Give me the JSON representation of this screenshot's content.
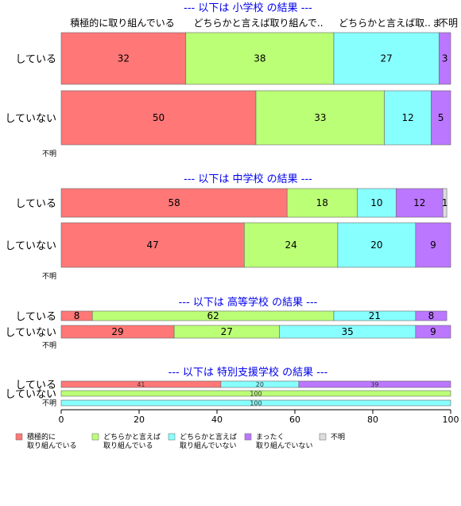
{
  "colors": {
    "積極的に取り組んでいる": "#ff7777",
    "どちらかと言えば取り組んでいる": "#bbff77",
    "どちらかと言えば取り組んでいない": "#88ffff",
    "まったく取り組んでいない": "#bb77ff",
    "不明": "#dddddd"
  },
  "top_headers": [
    "積極的に取り組んでいる",
    "どちらかと言えば取り組んで..",
    "どちらかと言えば取..",
    "ま",
    "不明"
  ],
  "chart_data": {
    "type": "bar",
    "orientation": "horizontal",
    "stacked": true,
    "xlim": [
      0,
      100
    ],
    "xticks": [
      0,
      20,
      40,
      60,
      80,
      100
    ],
    "legend": {
      "placement": "bottom-left",
      "entries": [
        {
          "key": "積極的に取り組んでいる",
          "lines": [
            "積極的に",
            "取り組んでいる"
          ]
        },
        {
          "key": "どちらかと言えば取り組んでいる",
          "lines": [
            "どちらかと言えば",
            "取り組んでいる"
          ]
        },
        {
          "key": "どちらかと言えば取り組んでいない",
          "lines": [
            "どちらかと言えば",
            "取り組んでいない"
          ]
        },
        {
          "key": "まったく取り組んでいない",
          "lines": [
            "まったく",
            "取り組んでいない"
          ]
        },
        {
          "key": "不明",
          "lines": [
            "不明"
          ]
        }
      ]
    },
    "panels": [
      {
        "title": "--- 以下は 小学校 の結果 ---",
        "rows": [
          {
            "label": "している",
            "values": [
              32,
              38,
              27,
              3,
              0
            ]
          },
          {
            "label": "していない",
            "values": [
              50,
              33,
              12,
              5,
              0
            ]
          },
          {
            "label": "不明",
            "values": []
          }
        ]
      },
      {
        "title": "--- 以下は 中学校 の結果 ---",
        "rows": [
          {
            "label": "している",
            "values": [
              58,
              18,
              10,
              12,
              1
            ]
          },
          {
            "label": "していない",
            "values": [
              47,
              24,
              20,
              9,
              0
            ]
          },
          {
            "label": "不明",
            "values": []
          }
        ]
      },
      {
        "title": "--- 以下は 高等学校 の結果 ---",
        "rows": [
          {
            "label": "している",
            "values": [
              8,
              62,
              21,
              8,
              0
            ]
          },
          {
            "label": "していない",
            "values": [
              29,
              27,
              35,
              9,
              0
            ]
          },
          {
            "label": "不明",
            "values": []
          }
        ]
      },
      {
        "title": "--- 以下は 特別支援学校 の結果 ---",
        "rows": [
          {
            "label": "している",
            "values": [
              41,
              0,
              20,
              39,
              0
            ]
          },
          {
            "label": "していない",
            "values": [
              0,
              100,
              0,
              0,
              0
            ]
          },
          {
            "label": "不明",
            "values": [
              0,
              0,
              100,
              0,
              0
            ]
          }
        ]
      }
    ]
  }
}
